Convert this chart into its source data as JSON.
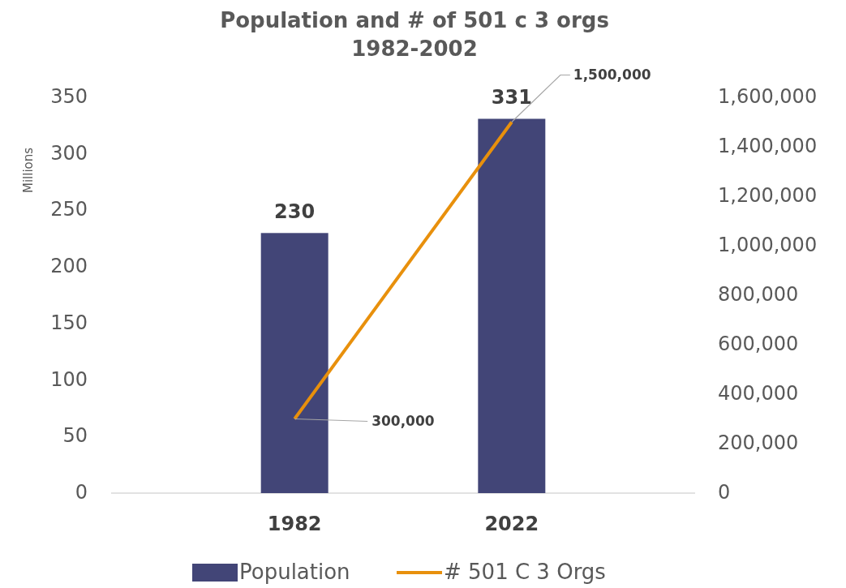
{
  "chart_data": {
    "type": "bar",
    "title": "Population and # of 501 c 3 orgs\n1982-2002",
    "ylabel": "Millions",
    "categories": [
      "1982",
      "2022"
    ],
    "series": [
      {
        "name": "Population",
        "color": "#424577",
        "values": [
          230,
          331
        ],
        "value_labels": [
          "230",
          "331"
        ]
      },
      {
        "name": "# 501 C 3 Orgs",
        "type": "line",
        "axis": "y2",
        "color": "#e8900c",
        "values": [
          300000,
          1500000
        ],
        "value_labels": [
          "300,000",
          "1,500,000"
        ]
      }
    ],
    "ylim": [
      0,
      350
    ],
    "yticks": [
      0,
      50,
      100,
      150,
      200,
      250,
      300,
      350
    ],
    "y2lim": [
      0,
      1600000
    ],
    "y2ticks": [
      0,
      {
        "value": 200000,
        "label": "200,000"
      },
      {
        "value": 400000,
        "label": "400,000"
      },
      {
        "value": 600000,
        "label": "600,000"
      },
      {
        "value": 800000,
        "label": "800,000"
      },
      {
        "value": 1000000,
        "label": "1,000,000"
      },
      {
        "value": 1200000,
        "label": "1,200,000"
      },
      {
        "value": 1400000,
        "label": "1,400,000"
      },
      {
        "value": 1600000,
        "label": "1,600,000"
      }
    ],
    "grid": false,
    "legend": "bottom",
    "marker": "none",
    "line_style": "solid"
  }
}
